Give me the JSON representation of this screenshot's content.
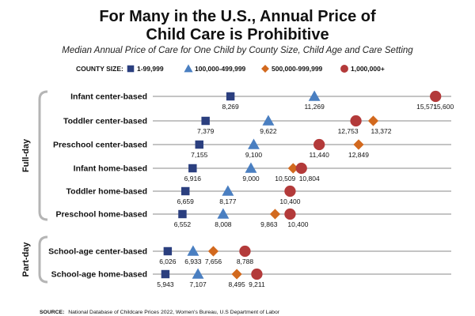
{
  "chart_data": {
    "type": "scatter",
    "title_lines": [
      "For Many in the U.S., Annual Price of",
      "Child Care is Prohibitive"
    ],
    "subtitle": "Median Annual Price of Care for One Child by County Size, Child Age and Care Setting",
    "legend_title": "COUNTY SIZE:",
    "x_unit": "USD per year",
    "xlim": [
      4000,
      16000
    ],
    "grid": false,
    "legend_position": "top",
    "series": [
      {
        "name": "1-99,999",
        "marker": "square",
        "color": "#2b3f7f"
      },
      {
        "name": "100,000-499,999",
        "marker": "triangle",
        "color": "#4a7fc1"
      },
      {
        "name": "500,000-999,999",
        "marker": "diamond",
        "color": "#d2691e"
      },
      {
        "name": "1,000,000+",
        "marker": "circle",
        "color": "#b33a3a"
      }
    ],
    "groups": [
      {
        "name": "Full-day",
        "categories": [
          0,
          1,
          2,
          3,
          4,
          5
        ]
      },
      {
        "name": "Part-day",
        "categories": [
          6,
          7
        ]
      }
    ],
    "categories": [
      {
        "label": "Infant center-based",
        "values": [
          8269,
          11269,
          15571,
          15600
        ],
        "label_pos": [
          "below",
          "below",
          "below",
          "below"
        ]
      },
      {
        "label": "Toddler center-based",
        "values": [
          7379,
          9622,
          13372,
          12753
        ],
        "label_pos": [
          "below",
          "below",
          "below",
          "below"
        ]
      },
      {
        "label": "Preschool center-based",
        "values": [
          7155,
          9100,
          12849,
          11440
        ],
        "label_pos": [
          "below",
          "below",
          "below",
          "below"
        ]
      },
      {
        "label": "Infant home-based",
        "values": [
          6916,
          9000,
          10509,
          10804
        ],
        "label_pos": [
          "below",
          "below",
          "below",
          "below"
        ]
      },
      {
        "label": "Toddler home-based",
        "values": [
          6659,
          8177,
          10400,
          10400
        ],
        "label_pos": [
          "below",
          "below",
          "none",
          "below"
        ]
      },
      {
        "label": "Preschool home-based",
        "values": [
          6552,
          8008,
          9863,
          10400
        ],
        "label_pos": [
          "below",
          "below",
          "below",
          "below"
        ]
      },
      {
        "label": "School-age center-based",
        "values": [
          6026,
          6933,
          7656,
          8788
        ],
        "label_pos": [
          "below",
          "below",
          "below",
          "below"
        ]
      },
      {
        "label": "School-age home-based",
        "values": [
          5943,
          7107,
          8495,
          9211
        ],
        "label_pos": [
          "below",
          "below",
          "below",
          "below"
        ]
      }
    ],
    "value_labels": [
      [
        "8,269",
        "11,269",
        "15,571",
        "15,600"
      ],
      [
        "7,379",
        "9,622",
        "13,372",
        "12,753"
      ],
      [
        "7,155",
        "9,100",
        "12,849",
        "11,440"
      ],
      [
        "6,916",
        "9,000",
        "10,509",
        "10,804"
      ],
      [
        "6,659",
        "8,177",
        "",
        "10,400"
      ],
      [
        "6,552",
        "8,008",
        "9,863",
        "10,400"
      ],
      [
        "6,026",
        "6,933",
        "7,656",
        "8,788"
      ],
      [
        "5,943",
        "7,107",
        "8,495",
        "9,211"
      ]
    ],
    "source_label": "SOURCE:",
    "source_text": "National Database of Childcare Prices 2022, Women's Bureau, U.S Department of Labor"
  }
}
